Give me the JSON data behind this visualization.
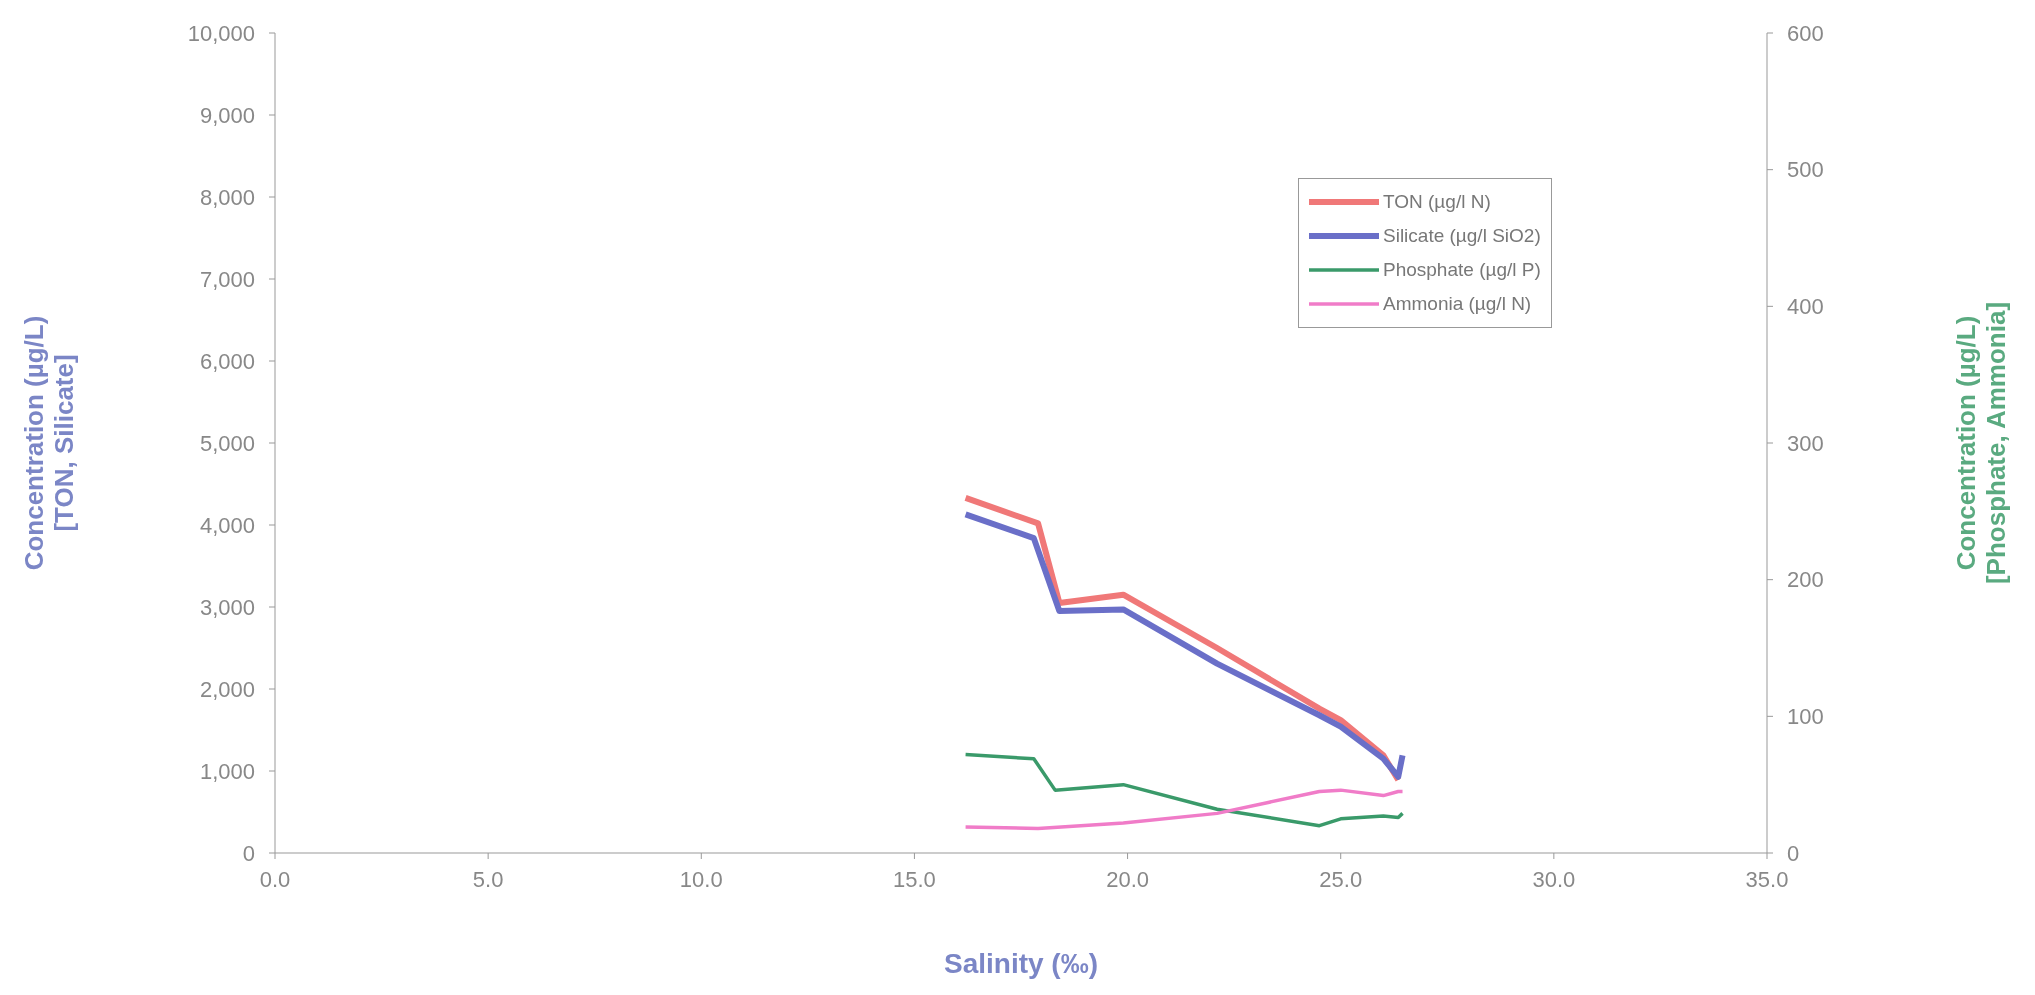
{
  "chart_data": {
    "type": "line",
    "xlabel": "Salinity (‰)",
    "ylabel": "Concentration (µg/L)\n[TON, Silicate]",
    "y2label": "Concentration (µg/L)\n[Phosphate, Ammonia]",
    "xlim": [
      0,
      35
    ],
    "xticks": [
      {
        "value": 0,
        "label": "0.0"
      },
      {
        "value": 5,
        "label": "5.0"
      },
      {
        "value": 10,
        "label": "10.0"
      },
      {
        "value": 15,
        "label": "15.0"
      },
      {
        "value": 20,
        "label": "20.0"
      },
      {
        "value": 25,
        "label": "25.0"
      },
      {
        "value": 30,
        "label": "30.0"
      },
      {
        "value": 35,
        "label": "35.0"
      }
    ],
    "ylim": [
      0,
      10000
    ],
    "yticks": [
      0,
      {
        "value": 1000,
        "label": "1,000"
      },
      {
        "value": 2000,
        "label": "2,000"
      },
      {
        "value": 3000,
        "label": "3,000"
      },
      {
        "value": 4000,
        "label": "4,000"
      },
      {
        "value": 5000,
        "label": "5,000"
      },
      {
        "value": 6000,
        "label": "6,000"
      },
      {
        "value": 7000,
        "label": "7,000"
      },
      {
        "value": 8000,
        "label": "8,000"
      },
      {
        "value": 9000,
        "label": "9,000"
      },
      {
        "value": 10000,
        "label": "10,000"
      }
    ],
    "y2lim": [
      0,
      600
    ],
    "y2ticks": [
      0,
      100,
      200,
      300,
      400,
      500,
      600
    ],
    "legend": "top right",
    "series": [
      {
        "name": "TON (µg/l N)",
        "color": "#f07878",
        "x": [
          16.2,
          17.9,
          18.4,
          19.9,
          22.1,
          24.5,
          25.0,
          26.0,
          26.35
        ],
        "values": [
          4330,
          4020,
          3050,
          3150,
          2500,
          1760,
          1620,
          1190,
          890
        ]
      },
      {
        "name": "Silicate (µg/l SiO2)",
        "color": "#6a6fc8",
        "x": [
          16.2,
          17.8,
          18.4,
          19.9,
          22.1,
          24.5,
          25.0,
          26.0,
          26.35,
          26.45
        ],
        "values": [
          4130,
          3840,
          2950,
          2970,
          2310,
          1680,
          1540,
          1150,
          930,
          1190
        ]
      },
      {
        "name": "Phosphate (µg/l P)",
        "color": "#3a9a6a",
        "axis": "y2",
        "x": [
          16.2,
          17.8,
          18.3,
          19.9,
          22.1,
          24.5,
          25.0,
          26.0,
          26.35,
          26.45
        ],
        "values": [
          72,
          69,
          46,
          50,
          32,
          20,
          25,
          27,
          26,
          29
        ]
      },
      {
        "name": "Ammonia (µg/l N)",
        "color": "#f07cc8",
        "axis": "y2",
        "x": [
          16.2,
          17.9,
          19.9,
          22.1,
          23.3,
          24.5,
          25.0,
          26.0,
          26.35,
          26.45
        ],
        "values": [
          19,
          18,
          22,
          29,
          37,
          45,
          46,
          42,
          45,
          45
        ]
      }
    ]
  }
}
